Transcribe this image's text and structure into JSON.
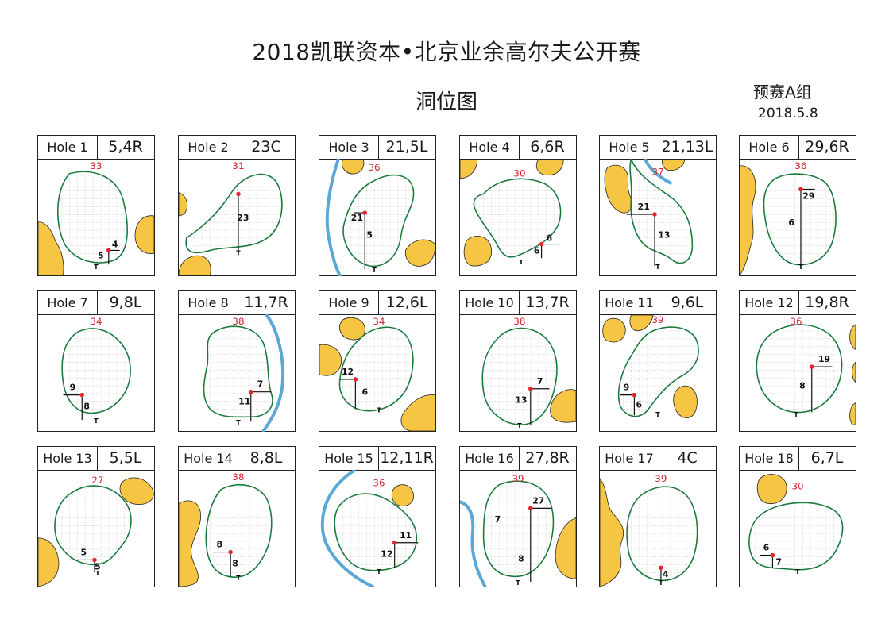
{
  "header": {
    "title": "2018凯联资本•北京业余高尔夫公开赛",
    "subtitle": "洞位图",
    "group": "预赛A组",
    "date": "2018.5.8"
  },
  "colors": {
    "green_outline": "#1a7a3c",
    "bunker": "#f7c544",
    "water": "#5aa7d8",
    "pin": "#e2252b",
    "depth_text": "#d22630"
  },
  "holes": [
    {
      "label": "Hole 1",
      "pin": "5,4R",
      "depth": "33",
      "m": [
        "5",
        "4"
      ]
    },
    {
      "label": "Hole 2",
      "pin": "23C",
      "depth": "31",
      "m": [
        "23"
      ]
    },
    {
      "label": "Hole 3",
      "pin": "21,5L",
      "depth": "36",
      "m": [
        "21",
        "5"
      ]
    },
    {
      "label": "Hole 4",
      "pin": "6,6R",
      "depth": "30",
      "m": [
        "6",
        "6"
      ]
    },
    {
      "label": "Hole 5",
      "pin": "21,13L",
      "depth": "37",
      "m": [
        "21",
        "13"
      ]
    },
    {
      "label": "Hole 6",
      "pin": "29,6R",
      "depth": "36",
      "m": [
        "29",
        "6"
      ]
    },
    {
      "label": "Hole 7",
      "pin": "9,8L",
      "depth": "34",
      "m": [
        "9",
        "8"
      ]
    },
    {
      "label": "Hole 8",
      "pin": "11,7R",
      "depth": "38",
      "m": [
        "11",
        "7"
      ]
    },
    {
      "label": "Hole 9",
      "pin": "12,6L",
      "depth": "34",
      "m": [
        "12",
        "6"
      ]
    },
    {
      "label": "Hole 10",
      "pin": "13,7R",
      "depth": "38",
      "m": [
        "13",
        "7"
      ]
    },
    {
      "label": "Hole 11",
      "pin": "9,6L",
      "depth": "39",
      "m": [
        "9",
        "6"
      ]
    },
    {
      "label": "Hole 12",
      "pin": "19,8R",
      "depth": "36",
      "m": [
        "19",
        "8"
      ]
    },
    {
      "label": "Hole 13",
      "pin": "5,5L",
      "depth": "27",
      "m": [
        "5",
        "5"
      ]
    },
    {
      "label": "Hole 14",
      "pin": "8,8L",
      "depth": "38",
      "m": [
        "8",
        "8"
      ]
    },
    {
      "label": "Hole 15",
      "pin": "12,11R",
      "depth": "36",
      "m": [
        "12",
        "11"
      ]
    },
    {
      "label": "Hole 16",
      "pin": "27,8R",
      "depth": "39",
      "m": [
        "27",
        "8",
        "7"
      ]
    },
    {
      "label": "Hole 17",
      "pin": "4C",
      "depth": "39",
      "m": [
        "4"
      ]
    },
    {
      "label": "Hole 18",
      "pin": "6,7L",
      "depth": "30",
      "m": [
        "6",
        "7"
      ]
    }
  ]
}
